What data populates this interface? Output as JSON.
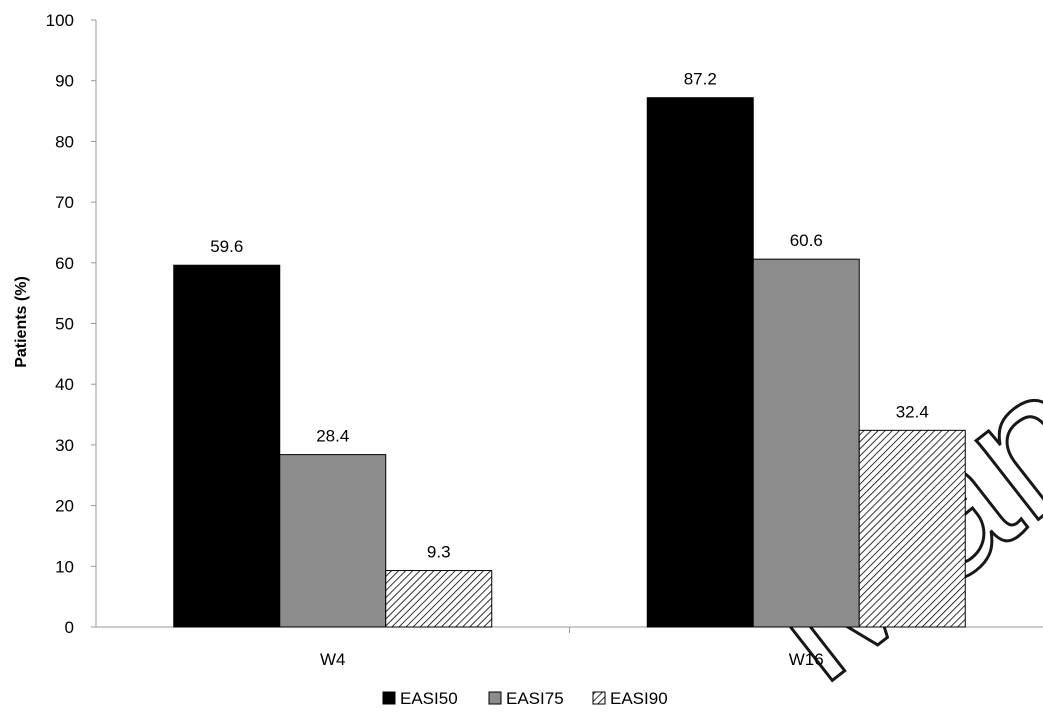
{
  "watermark": "Manuscript",
  "chart_data": {
    "type": "bar",
    "categories": [
      "W4",
      "W16"
    ],
    "series": [
      {
        "name": "EASI50",
        "values": [
          59.6,
          87.2
        ],
        "color": "#000000",
        "fill": "solid"
      },
      {
        "name": "EASI75",
        "values": [
          28.4,
          60.6
        ],
        "color": "#8c8c8c",
        "fill": "solid"
      },
      {
        "name": "EASI90",
        "values": [
          9.3,
          32.4
        ],
        "color": "#000000",
        "fill": "hatch"
      }
    ],
    "data_labels": [
      [
        "59.6",
        "87.2"
      ],
      [
        "28.4",
        "60.6"
      ],
      [
        "9.3",
        "32.4"
      ]
    ],
    "title": "",
    "xlabel": "",
    "ylabel": "Patients (%)",
    "ylim": [
      0,
      100
    ],
    "yticks": [
      "0",
      "10",
      "20",
      "30",
      "40",
      "50",
      "60",
      "70",
      "80",
      "90",
      "100"
    ],
    "grid": false,
    "legend": "bottom"
  }
}
